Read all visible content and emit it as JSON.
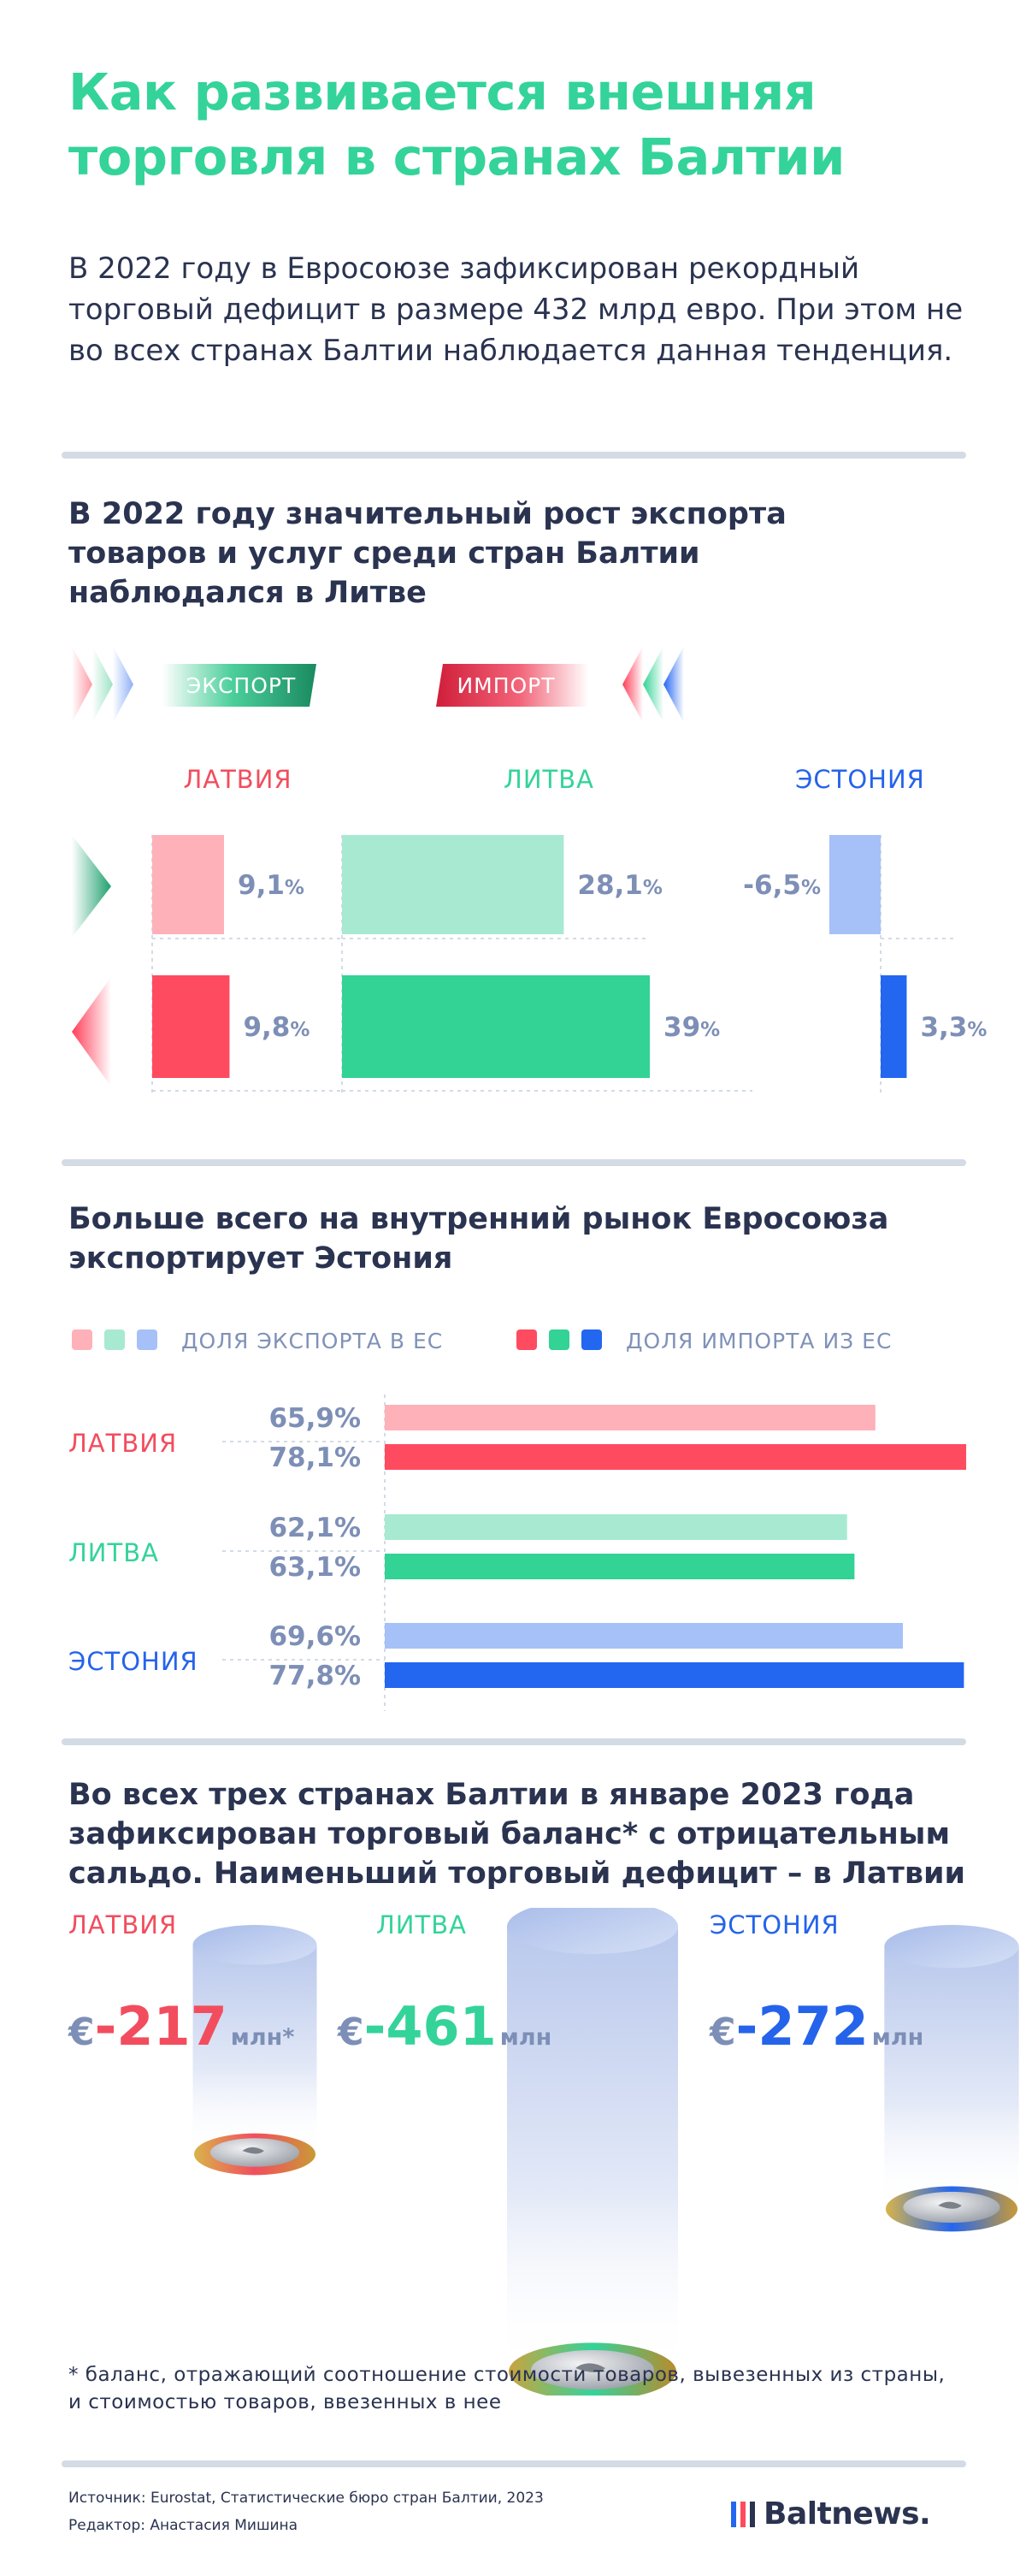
{
  "title": "Как развивается внешняя торговля в странах Балтии",
  "lead": "В 2022 году в Евросоюзе зафиксирован рекордный торговый дефицит в размере 432 млрд евро. При этом не во всех странах Балтии наблюдается данная тенденция.",
  "sections": {
    "s1": "В 2022 году значительный рост экспорта товаров и услуг среди стран Балтии наблюдался в Литве",
    "s2": "Больше всего на внутренний рынок Евросоюза экспортирует Эстония",
    "s3": "Во всех трех странах Балтии в январе 2023 года зафиксирован торговый баланс* с отрицательным сальдо. Наименьший торговый дефицит – в Латвии"
  },
  "colors": {
    "lv_light": "#feb1b9",
    "lv_dark": "#ff4b60",
    "lt_light": "#a8e9d2",
    "lt_dark": "#33d295",
    "ee_light": "#a6c0f8",
    "ee_dark": "#2366f0"
  },
  "chart_data": [
    {
      "type": "bar",
      "legend": {
        "export": "ЭКСПОРТ",
        "import": "ИМПОРТ"
      },
      "categories": [
        "ЛАТВИЯ",
        "ЛИТВА",
        "ЭСТОНИЯ"
      ],
      "series": [
        {
          "name": "ЭКСПОРТ",
          "values": [
            9.1,
            28.1,
            -6.5
          ],
          "labels": [
            "9,1",
            "28,1",
            "-6,5"
          ]
        },
        {
          "name": "ИМПОРТ",
          "values": [
            9.8,
            39,
            3.3
          ],
          "labels": [
            "9,8",
            "39",
            "3,3"
          ]
        }
      ],
      "unit": "%"
    },
    {
      "type": "bar",
      "orientation": "horizontal",
      "legend": {
        "export": "ДОЛЯ ЭКСПОРТА В ЕС",
        "import": "ДОЛЯ ИМПОРТА ИЗ ЕС"
      },
      "categories": [
        "ЛАТВИЯ",
        "ЛИТВА",
        "ЭСТОНИЯ"
      ],
      "series": [
        {
          "name": "ДОЛЯ ЭКСПОРТА В ЕС",
          "values": [
            65.9,
            62.1,
            69.6
          ],
          "labels": [
            "65,9",
            "62,1",
            "69,6"
          ]
        },
        {
          "name": "ДОЛЯ ИМПОРТА ИЗ ЕС",
          "values": [
            78.1,
            63.1,
            77.8
          ],
          "labels": [
            "78,1",
            "63,1",
            "77,8"
          ]
        }
      ],
      "unit": "%"
    },
    {
      "type": "bar",
      "categories": [
        "ЛАТВИЯ",
        "ЛИТВА",
        "ЭСТОНИЯ"
      ],
      "values": [
        -217,
        -461,
        -272
      ],
      "labels": [
        "-217",
        "-461",
        "-272"
      ],
      "currency": "€",
      "units": [
        "млн*",
        "млн",
        "млн"
      ]
    }
  ],
  "footnote": "* баланс, отражающий соотношение стоимости товаров, вывезенных из страны, и стоимостью товаров, ввезенных в нее",
  "source": "Источник: Eurostat, Статистические бюро стран Балтии, 2023",
  "editor": "Редактор: Анастасия Мишина",
  "brand": "Baltnews."
}
